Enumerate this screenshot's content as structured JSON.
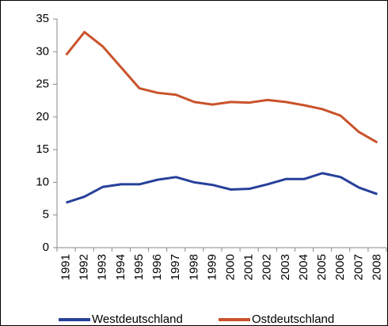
{
  "chart_data": {
    "type": "line",
    "categories": [
      "1991",
      "1992",
      "1993",
      "1994",
      "1995",
      "1996",
      "1997",
      "1998",
      "1999",
      "2000",
      "2001",
      "2002",
      "2003",
      "2004",
      "2005",
      "2006",
      "2007",
      "2008"
    ],
    "series": [
      {
        "name": "Westdeutschland",
        "color": "#27409a",
        "values": [
          6.9,
          7.8,
          9.3,
          9.7,
          9.7,
          10.4,
          10.8,
          10.0,
          9.6,
          8.9,
          9.0,
          9.7,
          10.5,
          10.5,
          11.4,
          10.8,
          9.2,
          8.2
        ]
      },
      {
        "name": "Ostdeutschland",
        "color": "#c9532b",
        "values": [
          29.5,
          33.0,
          30.8,
          27.6,
          24.4,
          23.7,
          23.4,
          22.3,
          21.9,
          22.3,
          22.2,
          22.6,
          22.3,
          21.8,
          21.2,
          20.2,
          17.7,
          16.1
        ]
      }
    ],
    "ylim": [
      0,
      35
    ],
    "yticks": [
      0,
      5,
      10,
      15,
      20,
      25,
      30,
      35
    ],
    "grid": false,
    "legend": "bottom"
  }
}
